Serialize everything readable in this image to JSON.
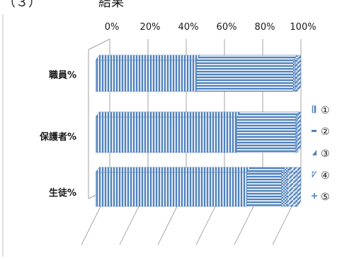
{
  "heading": "（３）　　　　　結果",
  "chart_data": {
    "type": "bar",
    "orientation": "horizontal",
    "stacked": "percent",
    "three_d": true,
    "categories": [
      "職員%",
      "保護者%",
      "生徒%"
    ],
    "series": [
      {
        "name": "①",
        "values": [
          50,
          70,
          75
        ],
        "pattern": "vertical-stripes"
      },
      {
        "name": "②",
        "values": [
          48,
          29,
          17
        ],
        "pattern": "horizontal-stripes"
      },
      {
        "name": "③",
        "values": [
          1,
          0.5,
          3
        ],
        "pattern": "checker"
      },
      {
        "name": "④",
        "values": [
          1,
          0.5,
          5
        ],
        "pattern": "diagonal"
      },
      {
        "name": "⑤",
        "values": [
          0,
          0,
          0
        ],
        "pattern": "plus"
      }
    ],
    "xticks": [
      "0%",
      "20%",
      "40%",
      "60%",
      "80%",
      "100%"
    ],
    "xlim": [
      0,
      100
    ],
    "grid": true,
    "legend": "right",
    "colors": {
      "bar": "#4f81bd",
      "bar_light": "#dbe5f1",
      "grid": "#8c8c8c",
      "axis": "#8c8c8c"
    }
  }
}
